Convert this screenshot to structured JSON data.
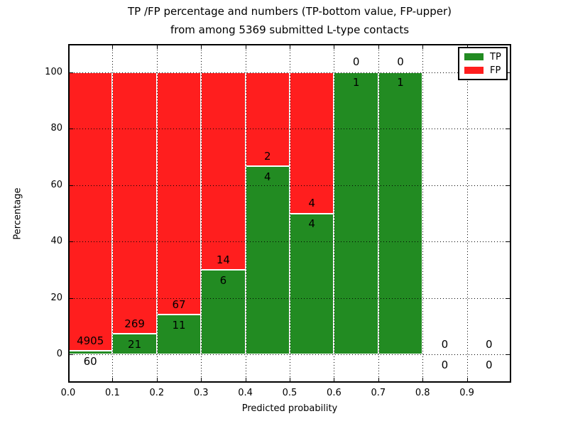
{
  "chart_data": {
    "type": "bar",
    "stacked": true,
    "title_line1": "TP /FP percentage and numbers (TP-bottom value, FP-upper)",
    "title_line2": "from among 5369 submitted L-type contacts",
    "xlabel": "Predicted probability",
    "ylabel": "Percentage",
    "xlim": [
      0.0,
      1.0
    ],
    "ylim": [
      -10,
      110
    ],
    "xticks": [
      "0.0",
      "0.1",
      "0.2",
      "0.3",
      "0.4",
      "0.5",
      "0.6",
      "0.7",
      "0.8",
      "0.9"
    ],
    "yticks": [
      "0",
      "20",
      "40",
      "60",
      "80",
      "100"
    ],
    "grid": true,
    "legend_position": "upper right",
    "series": [
      {
        "name": "TP",
        "color": "#228b22"
      },
      {
        "name": "FP",
        "color": "#ff1e1e"
      }
    ],
    "bins": [
      {
        "range": [
          0.0,
          0.1
        ],
        "tp": 60,
        "fp": 4905,
        "tp_pct": 1.21,
        "fp_pct": 98.79
      },
      {
        "range": [
          0.1,
          0.2
        ],
        "tp": 21,
        "fp": 269,
        "tp_pct": 7.24,
        "fp_pct": 92.76
      },
      {
        "range": [
          0.2,
          0.3
        ],
        "tp": 11,
        "fp": 67,
        "tp_pct": 14.1,
        "fp_pct": 85.9
      },
      {
        "range": [
          0.3,
          0.4
        ],
        "tp": 6,
        "fp": 14,
        "tp_pct": 30.0,
        "fp_pct": 70.0
      },
      {
        "range": [
          0.4,
          0.5
        ],
        "tp": 4,
        "fp": 2,
        "tp_pct": 66.67,
        "fp_pct": 33.33
      },
      {
        "range": [
          0.5,
          0.6
        ],
        "tp": 4,
        "fp": 4,
        "tp_pct": 50.0,
        "fp_pct": 50.0
      },
      {
        "range": [
          0.6,
          0.7
        ],
        "tp": 1,
        "fp": 0,
        "tp_pct": 100.0,
        "fp_pct": 0.0
      },
      {
        "range": [
          0.7,
          0.8
        ],
        "tp": 1,
        "fp": 0,
        "tp_pct": 100.0,
        "fp_pct": 0.0
      },
      {
        "range": [
          0.8,
          0.9
        ],
        "tp": 0,
        "fp": 0,
        "tp_pct": 0.0,
        "fp_pct": 0.0
      },
      {
        "range": [
          0.9,
          1.0
        ],
        "tp": 0,
        "fp": 0,
        "tp_pct": 0.0,
        "fp_pct": 0.0
      }
    ]
  }
}
